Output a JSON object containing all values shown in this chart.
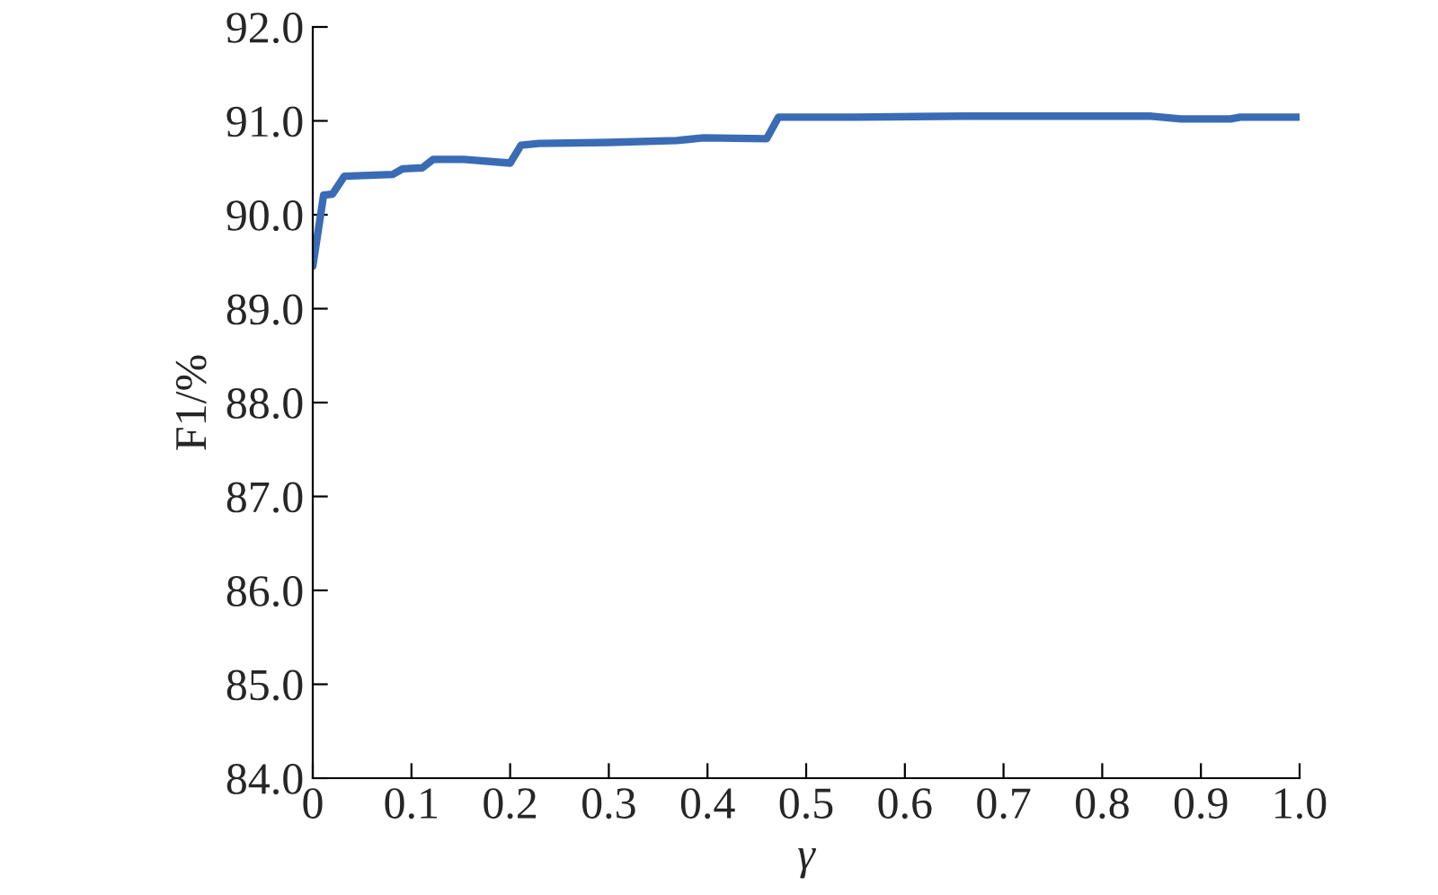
{
  "chart_data": {
    "type": "line",
    "xlabel": "γ",
    "ylabel": "F1/%",
    "x": [
      0,
      0.011,
      0.02,
      0.032,
      0.081,
      0.091,
      0.111,
      0.122,
      0.153,
      0.2,
      0.211,
      0.229,
      0.3,
      0.369,
      0.396,
      0.46,
      0.472,
      0.55,
      0.66,
      0.85,
      0.88,
      0.93,
      0.94,
      1.0
    ],
    "series": [
      {
        "color": "#3a6cb5",
        "values": [
          89.45,
          90.21,
          90.22,
          90.41,
          90.43,
          90.49,
          90.5,
          90.59,
          90.59,
          90.55,
          90.74,
          90.76,
          90.77,
          90.79,
          90.82,
          90.81,
          91.04,
          91.04,
          91.05,
          91.05,
          91.02,
          91.02,
          91.04,
          91.04
        ]
      }
    ],
    "xlim": [
      0,
      1.0
    ],
    "xticks": [
      0,
      0.1,
      0.2,
      0.3,
      0.4,
      0.5,
      0.6,
      0.7,
      0.8,
      0.9,
      {
        "value": 1.0,
        "label": "1.0"
      }
    ],
    "ylim": [
      84.0,
      92.0
    ],
    "yticks": [
      {
        "value": 84,
        "label": "84.0"
      },
      {
        "value": 85,
        "label": "85.0"
      },
      {
        "value": 86,
        "label": "86.0"
      },
      {
        "value": 87,
        "label": "87.0"
      },
      {
        "value": 88,
        "label": "88.0"
      },
      {
        "value": 89,
        "label": "89.0"
      },
      {
        "value": 90,
        "label": "90.0"
      },
      {
        "value": 91,
        "label": "91.0"
      },
      {
        "value": 92,
        "label": "92.0"
      }
    ],
    "grid": false,
    "legend": false,
    "marker": "none",
    "line_style": "solid"
  }
}
